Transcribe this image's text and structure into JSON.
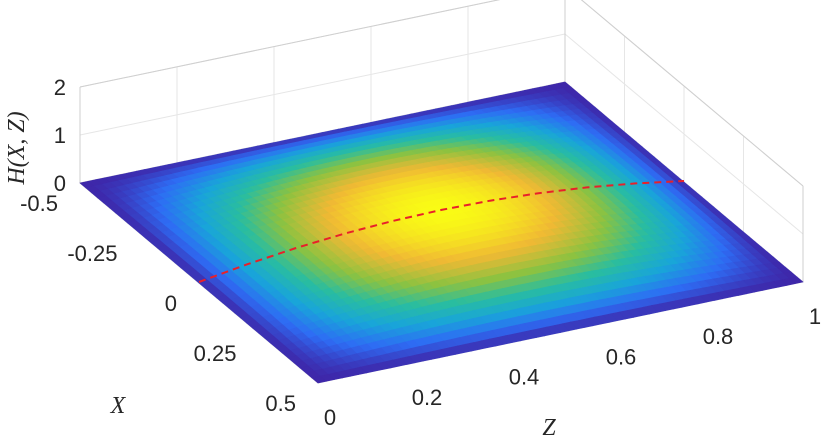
{
  "chart_data": {
    "type": "surface",
    "title": "",
    "xlabel": "X",
    "ylabel": "Z",
    "zlabel": "H(X, Z)",
    "x_ticks": [
      "-0.5",
      "-0.25",
      "0",
      "0.25",
      "0.5"
    ],
    "y_ticks": [
      "0",
      "0.2",
      "0.4",
      "0.6",
      "0.8",
      "1"
    ],
    "z_ticks": [
      "0",
      "1",
      "2"
    ],
    "xlim": [
      -0.5,
      0.5
    ],
    "ylim": [
      0,
      1
    ],
    "zlim": [
      0,
      2
    ],
    "grid": true,
    "colormap": "parula",
    "colormap_stops": [
      "#3e26a8",
      "#2e6cf4",
      "#19a5d9",
      "#29bda0",
      "#8dc240",
      "#f0b934",
      "#f9fb15"
    ],
    "surface": {
      "formula": "H(X,Z) = (1 - 4X^2) * Z * (1 - Z) * 4 * 0.45",
      "peak_value": 0.45,
      "peak_at": {
        "x": 0,
        "z": 0.5
      }
    },
    "curve": {
      "description_color": "#e8202a",
      "style": "dashed",
      "x": 0,
      "z_values": [
        0,
        0.1,
        0.2,
        0.3,
        0.4,
        0.5,
        0.6,
        0.7,
        0.8,
        0.9,
        1.0
      ]
    }
  }
}
